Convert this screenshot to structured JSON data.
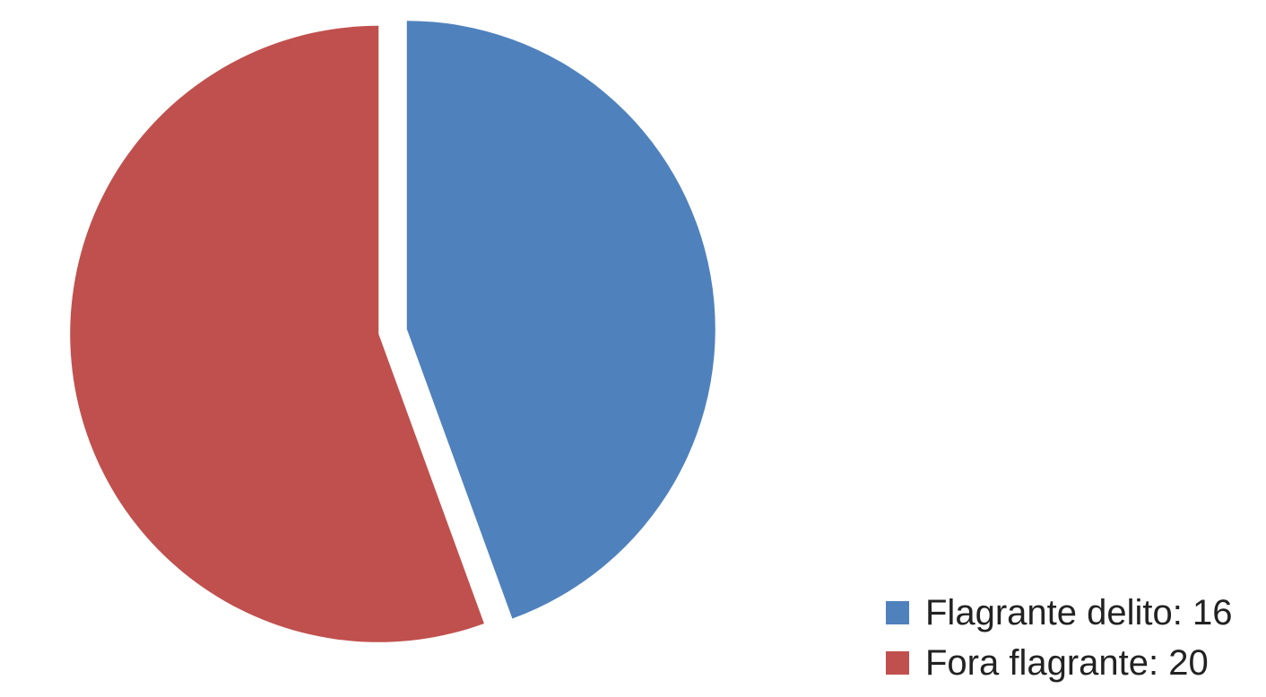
{
  "chart_data": {
    "type": "pie",
    "exploded": true,
    "start_angle": "12 o'clock, clockwise",
    "slices": [
      {
        "label": "Flagrante delito",
        "value": 16,
        "legend_text": "Flagrante delito: 16",
        "color": "#4F81BD"
      },
      {
        "label": "Fora flagrante",
        "value": 20,
        "legend_text": "Fora flagrante: 20",
        "color": "#C0504D"
      }
    ],
    "legend": {
      "placement": "bottom-right"
    }
  }
}
